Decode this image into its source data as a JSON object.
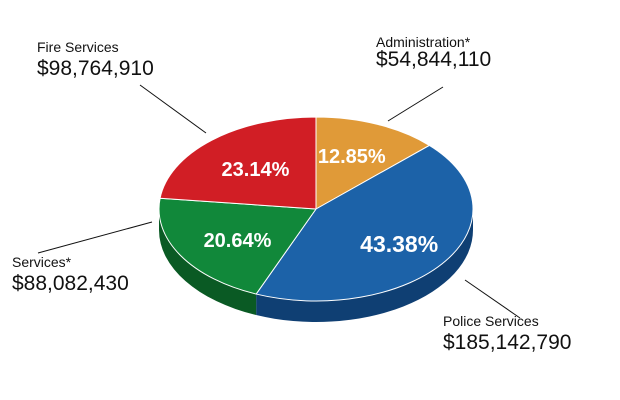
{
  "chart_data": {
    "type": "pie",
    "style": "3d",
    "title": "",
    "slices": [
      {
        "name": "Administration*",
        "value": 54844110,
        "value_label": "$54,844,110",
        "percent_label": "12.85%",
        "color": "#E09A38",
        "side_color": "#A66B1E"
      },
      {
        "name": "Police Services",
        "value": 185142790,
        "value_label": "$185,142,790",
        "percent_label": "43.38%",
        "color": "#1C62A8",
        "side_color": "#0F3F73"
      },
      {
        "name": "Services*",
        "value": 88082430,
        "value_label": "$88,082,430",
        "percent_label": "20.64%",
        "color": "#11883A",
        "side_color": "#0A5A24"
      },
      {
        "name": "Fire Services",
        "value": 98764910,
        "value_label": "$98,764,910",
        "percent_label": "23.14%",
        "color": "#D11E25",
        "side_color": "#8E1217"
      }
    ]
  }
}
